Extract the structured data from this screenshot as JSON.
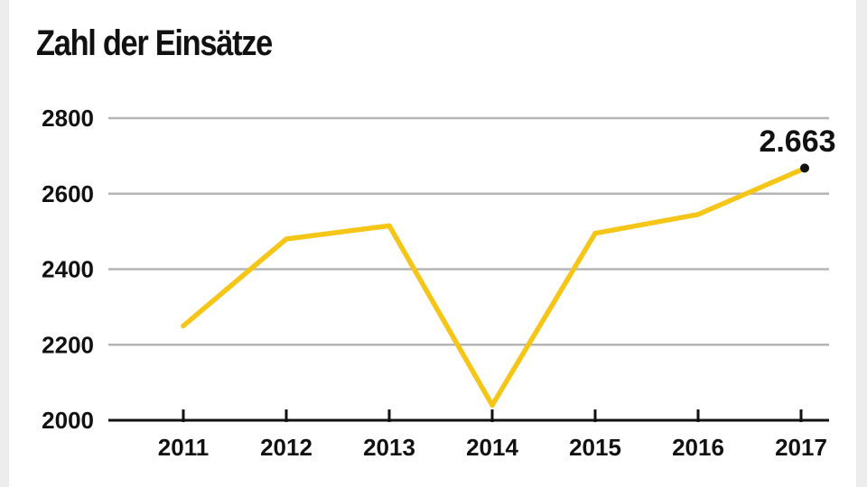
{
  "chart_data": {
    "type": "line",
    "title": "Zahl der Einsätze",
    "xlabel": "",
    "ylabel": "",
    "categories": [
      "2011",
      "2012",
      "2013",
      "2014",
      "2015",
      "2016",
      "2017"
    ],
    "series": [
      {
        "values": [
          2250,
          2480,
          2515,
          2040,
          2495,
          2545,
          2663
        ]
      }
    ],
    "ylim": [
      2000,
      2800
    ],
    "yticks": [
      2000,
      2200,
      2400,
      2600,
      2800
    ],
    "ytick_labels": [
      "2000",
      "2200",
      "2400",
      "2600",
      "2800"
    ],
    "grid": true,
    "annotation": {
      "category": "2017",
      "text": "2.663"
    },
    "colors": {
      "line": "#f5c518",
      "grid": "#b5b5b5",
      "axis": "#111111",
      "text": "#111111"
    }
  }
}
